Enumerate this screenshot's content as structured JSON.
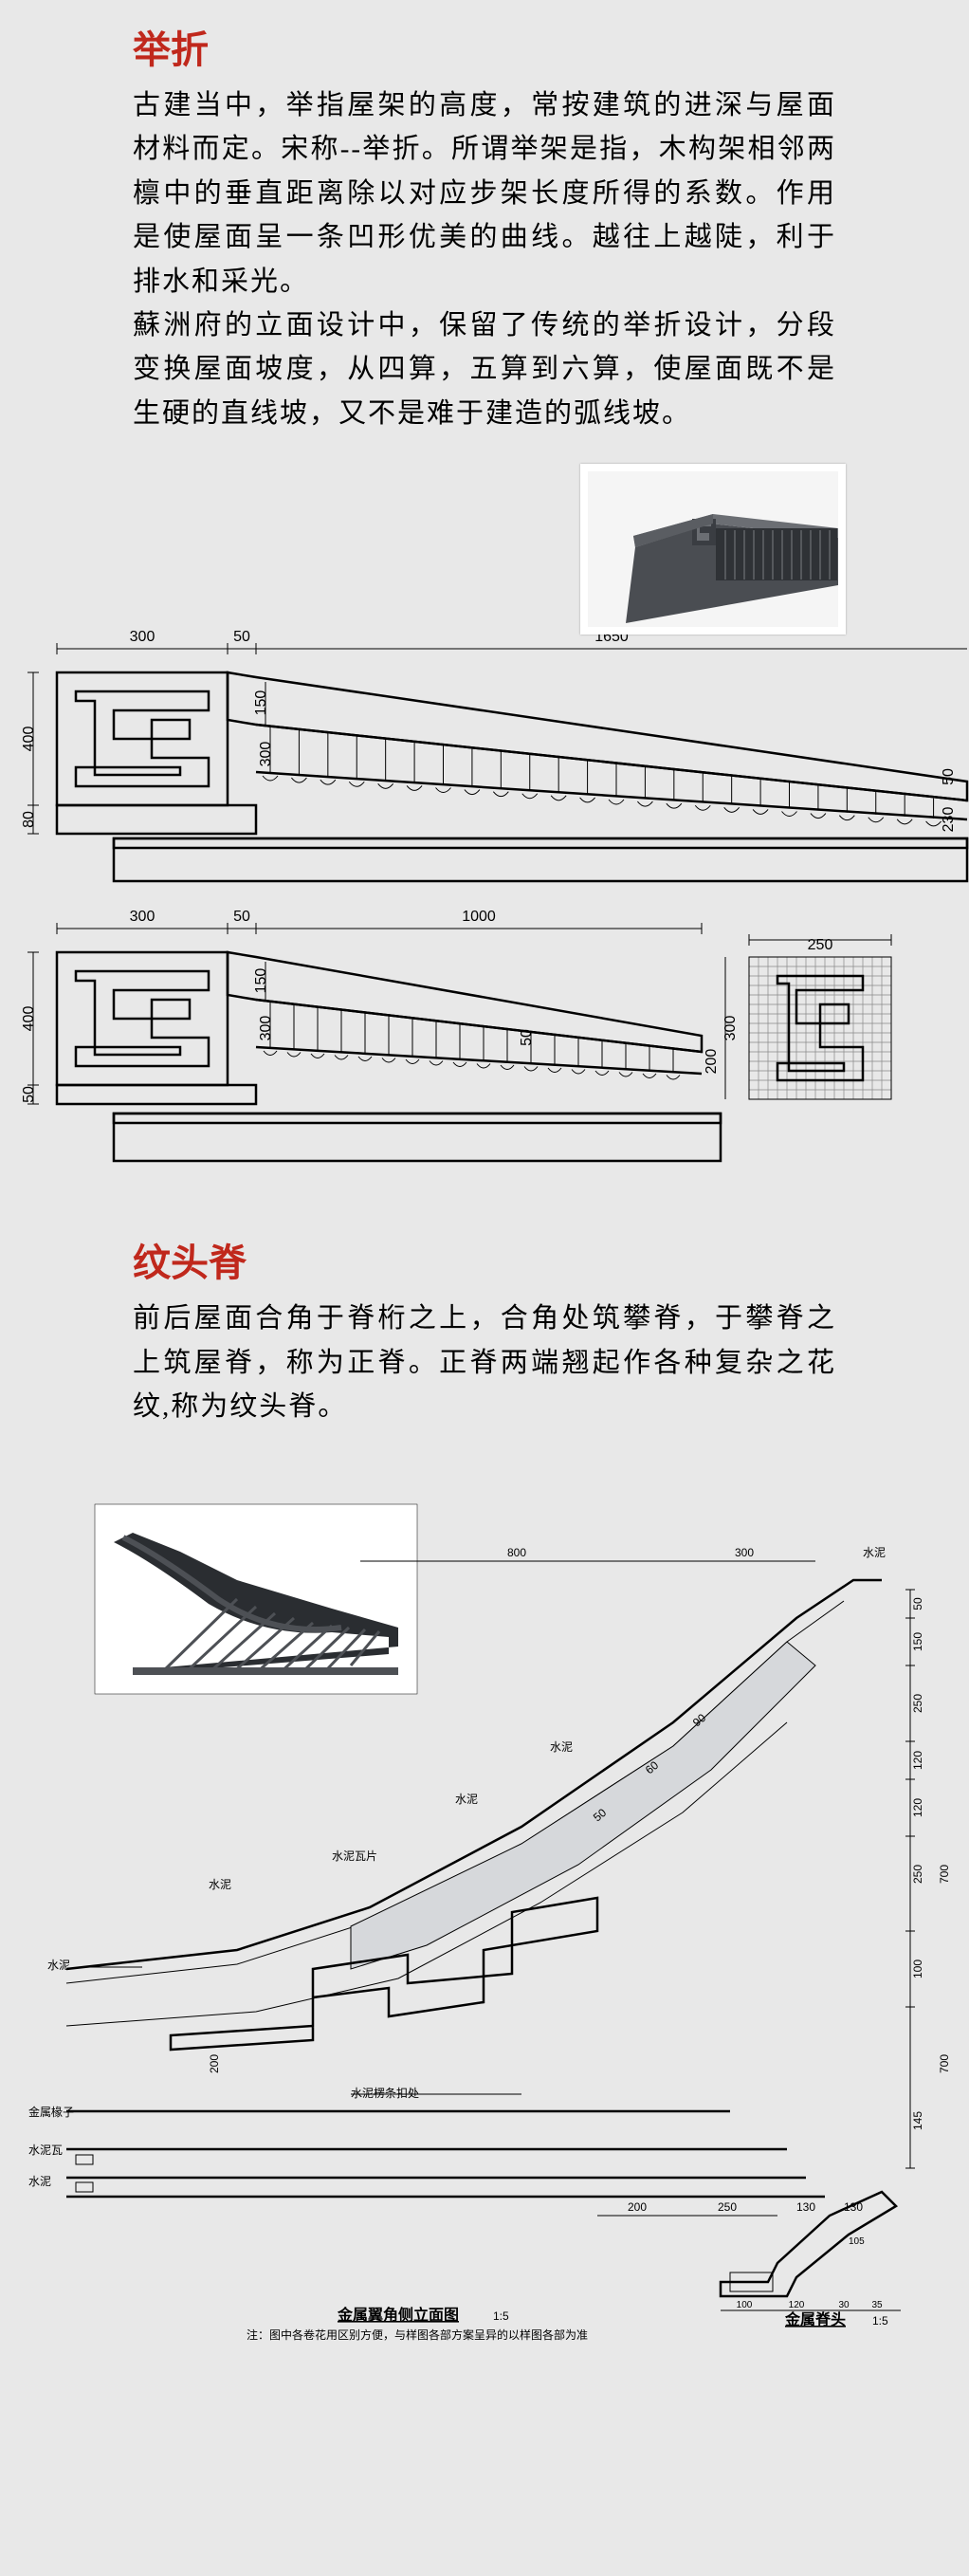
{
  "colors": {
    "page_bg": "#e8e8e8",
    "heading": "#c0281c",
    "body": "#000000",
    "roof_fill": "#9aa0a6",
    "roof_light": "#c5c8cc",
    "roof_dark": "#3a3d42",
    "photo_bg": "#fafafa",
    "line": "#000000"
  },
  "typography": {
    "heading_fontsize": 40,
    "body_fontsize": 29,
    "body_lineheight": 1.6,
    "dim_fontsize": 16,
    "font_family": "SimSun"
  },
  "section1": {
    "heading": "举折",
    "para1": "古建当中，举指屋架的高度，常按建筑的进深与屋面材料而定。宋称--举折。所谓举架是指，木构架相邻两檩中的垂直距离除以对应步架长度所得的系数。作用是使屋面呈一条凹形优美的曲线。越往上越陡，利于排水和采光。",
    "para2": "蘇洲府的立面设计中，保留了传统的举折设计，分段变换屋面坡度，从四算，五算到六算，使屋面既不是生硬的直线坡，又不是难于建造的弧线坡。"
  },
  "diagram1": {
    "type": "architectural_section",
    "dims_top": [
      "300",
      "50",
      "1650"
    ],
    "dims_left": [
      "400",
      "80"
    ],
    "dims_inner": [
      "150",
      "300"
    ],
    "dims_right": [
      "50",
      "230"
    ],
    "tile_count": 24
  },
  "diagram2": {
    "type": "architectural_section",
    "dims_top": [
      "300",
      "50",
      "1000"
    ],
    "dims_left": [
      "400",
      "50"
    ],
    "dims_inner": [
      "150",
      "300",
      "50"
    ],
    "dims_right": [
      "200"
    ],
    "end_detail": {
      "dims": [
        "250",
        "300"
      ]
    },
    "tile_count": 18
  },
  "section2": {
    "heading": "纹头脊",
    "para": "前后屋面合角于脊桁之上，合角处筑攀脊，于攀脊之上筑屋脊，称为正脊。正脊两端翘起作各种复杂之花纹,称为纹头脊。"
  },
  "diagram3": {
    "type": "architectural_elevation",
    "title": "金属翼角侧立面图",
    "title_scale": "1:5",
    "subtitle": "金属脊头",
    "subtitle_scale": "1:5",
    "note": "注：图中各卷花用区别方便，与样图各部方案呈异的以样图各部为准",
    "dims_top": [
      "800",
      "300",
      "水泥"
    ],
    "dims_right_col": [
      "50",
      "150",
      "250",
      "120",
      "120",
      "250",
      "700",
      "100",
      "700",
      "145"
    ],
    "dims_bottom": [
      "200",
      "250",
      "130",
      "130"
    ],
    "dims_end": [
      "100",
      "120",
      "30",
      "35"
    ],
    "labels": [
      "水泥",
      "水泥",
      "水泥瓦片",
      "水泥",
      "水泥",
      "水泥楞条扣处",
      "金属椽子",
      "水泥瓦",
      "水泥"
    ],
    "small_dims": [
      "50",
      "60",
      "90",
      "105",
      "200"
    ]
  }
}
